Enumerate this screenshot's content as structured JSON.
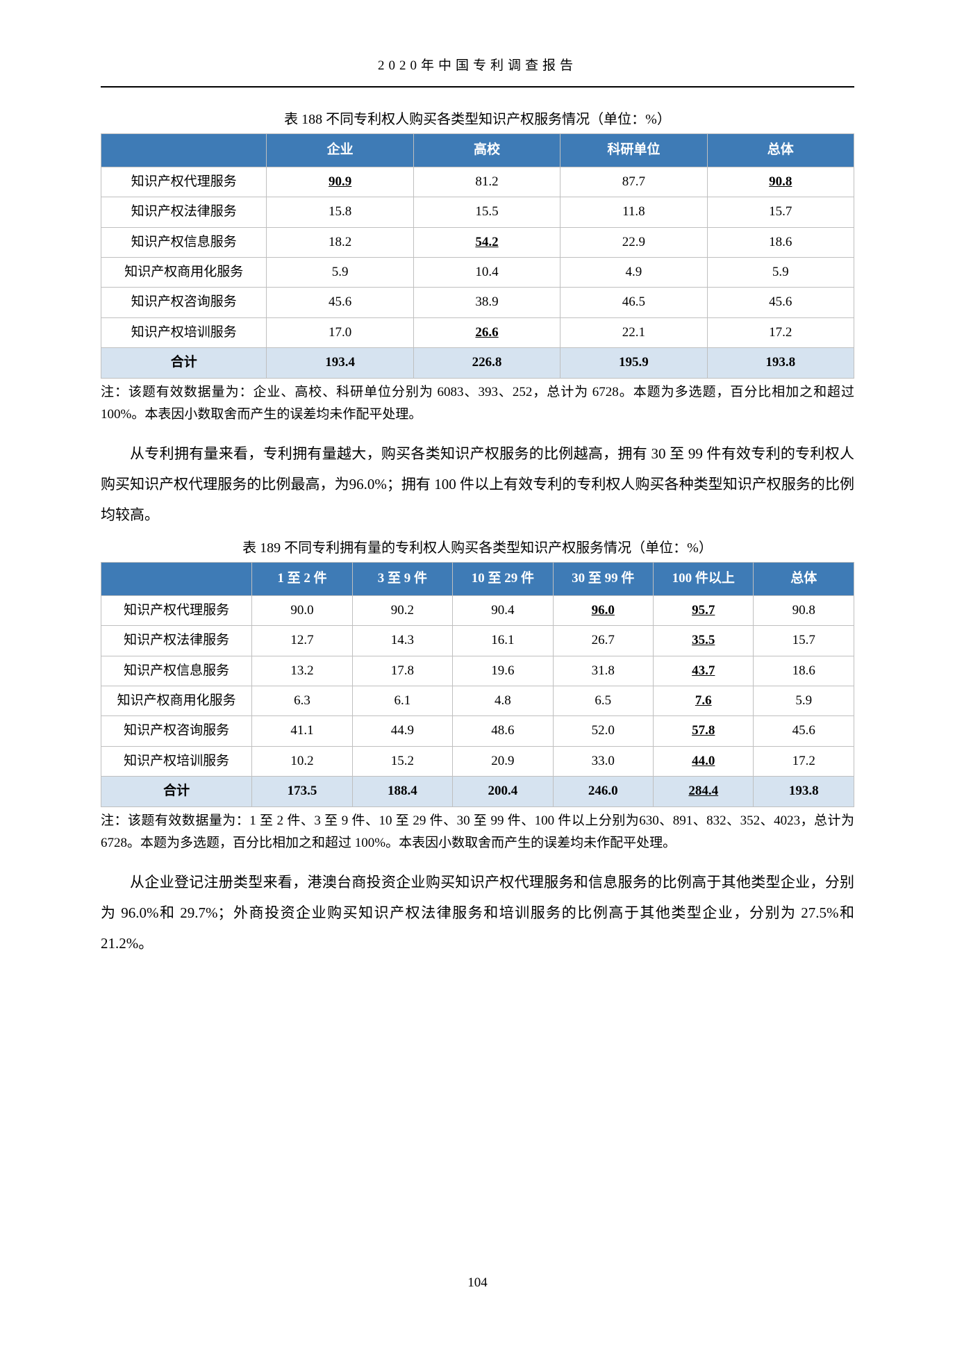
{
  "header": "2020年中国专利调查报告",
  "pageNumber": "104",
  "table188": {
    "caption": "表 188 不同专利权人购买各类型知识产权服务情况（单位：%）",
    "headers": [
      "",
      "企业",
      "高校",
      "科研单位",
      "总体"
    ],
    "rows": [
      {
        "label": "知识产权代理服务",
        "cells": [
          {
            "v": "90.9",
            "ub": true
          },
          {
            "v": "81.2"
          },
          {
            "v": "87.7"
          },
          {
            "v": "90.8",
            "ub": true
          }
        ]
      },
      {
        "label": "知识产权法律服务",
        "cells": [
          {
            "v": "15.8"
          },
          {
            "v": "15.5"
          },
          {
            "v": "11.8"
          },
          {
            "v": "15.7"
          }
        ]
      },
      {
        "label": "知识产权信息服务",
        "cells": [
          {
            "v": "18.2"
          },
          {
            "v": "54.2",
            "ub": true
          },
          {
            "v": "22.9"
          },
          {
            "v": "18.6"
          }
        ]
      },
      {
        "label": "知识产权商用化服务",
        "cells": [
          {
            "v": "5.9"
          },
          {
            "v": "10.4"
          },
          {
            "v": "4.9"
          },
          {
            "v": "5.9"
          }
        ]
      },
      {
        "label": "知识产权咨询服务",
        "cells": [
          {
            "v": "45.6"
          },
          {
            "v": "38.9"
          },
          {
            "v": "46.5"
          },
          {
            "v": "45.6"
          }
        ]
      },
      {
        "label": "知识产权培训服务",
        "cells": [
          {
            "v": "17.0"
          },
          {
            "v": "26.6",
            "ub": true
          },
          {
            "v": "22.1"
          },
          {
            "v": "17.2"
          }
        ]
      }
    ],
    "total": {
      "label": "合计",
      "cells": [
        "193.4",
        "226.8",
        "195.9",
        "193.8"
      ]
    },
    "note": "注：该题有效数据量为：企业、高校、科研单位分别为 6083、393、252，总计为 6728。本题为多选题，百分比相加之和超过 100%。本表因小数取舍而产生的误差均未作配平处理。"
  },
  "para1": "从专利拥有量来看，专利拥有量越大，购买各类知识产权服务的比例越高，拥有 30 至 99 件有效专利的专利权人购买知识产权代理服务的比例最高，为96.0%；拥有 100 件以上有效专利的专利权人购买各种类型知识产权服务的比例均较高。",
  "table189": {
    "caption": "表 189 不同专利拥有量的专利权人购买各类型知识产权服务情况（单位：%）",
    "headers": [
      "",
      "1 至 2 件",
      "3 至 9 件",
      "10 至 29 件",
      "30 至 99 件",
      "100 件以上",
      "总体"
    ],
    "rows": [
      {
        "label": "知识产权代理服务",
        "cells": [
          {
            "v": "90.0"
          },
          {
            "v": "90.2"
          },
          {
            "v": "90.4"
          },
          {
            "v": "96.0",
            "ub": true
          },
          {
            "v": "95.7",
            "ub": true
          },
          {
            "v": "90.8"
          }
        ]
      },
      {
        "label": "知识产权法律服务",
        "cells": [
          {
            "v": "12.7"
          },
          {
            "v": "14.3"
          },
          {
            "v": "16.1"
          },
          {
            "v": "26.7"
          },
          {
            "v": "35.5",
            "ub": true
          },
          {
            "v": "15.7"
          }
        ]
      },
      {
        "label": "知识产权信息服务",
        "cells": [
          {
            "v": "13.2"
          },
          {
            "v": "17.8"
          },
          {
            "v": "19.6"
          },
          {
            "v": "31.8"
          },
          {
            "v": "43.7",
            "ub": true
          },
          {
            "v": "18.6"
          }
        ]
      },
      {
        "label": "知识产权商用化服务",
        "cells": [
          {
            "v": "6.3"
          },
          {
            "v": "6.1"
          },
          {
            "v": "4.8"
          },
          {
            "v": "6.5"
          },
          {
            "v": "7.6",
            "ub": true
          },
          {
            "v": "5.9"
          }
        ]
      },
      {
        "label": "知识产权咨询服务",
        "cells": [
          {
            "v": "41.1"
          },
          {
            "v": "44.9"
          },
          {
            "v": "48.6"
          },
          {
            "v": "52.0"
          },
          {
            "v": "57.8",
            "ub": true
          },
          {
            "v": "45.6"
          }
        ]
      },
      {
        "label": "知识产权培训服务",
        "cells": [
          {
            "v": "10.2"
          },
          {
            "v": "15.2"
          },
          {
            "v": "20.9"
          },
          {
            "v": "33.0"
          },
          {
            "v": "44.0",
            "ub": true
          },
          {
            "v": "17.2"
          }
        ]
      }
    ],
    "total": {
      "label": "合计",
      "cells": [
        "173.5",
        "188.4",
        "200.4",
        "246.0",
        "284.4",
        "193.8"
      ],
      "ub": [
        false,
        false,
        false,
        false,
        true,
        false
      ]
    },
    "note": "注：该题有效数据量为：1 至 2 件、3 至 9 件、10 至 29 件、30 至 99 件、100 件以上分别为630、891、832、352、4023，总计为 6728。本题为多选题，百分比相加之和超过 100%。本表因小数取舍而产生的误差均未作配平处理。"
  },
  "para2": "从企业登记注册类型来看，港澳台商投资企业购买知识产权代理服务和信息服务的比例高于其他类型企业，分别为 96.0%和 29.7%；外商投资企业购买知识产权法律服务和培训服务的比例高于其他类型企业，分别为 27.5%和 21.2%。"
}
